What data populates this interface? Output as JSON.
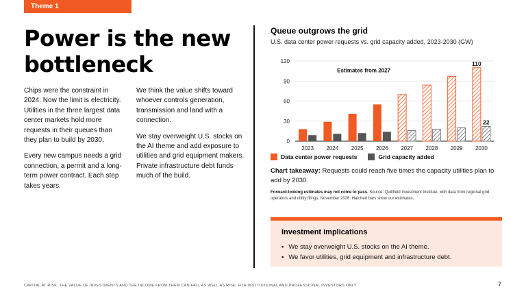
{
  "theme_tab": "Theme 1",
  "headline": "Power is the new bottleneck",
  "left_col": {
    "p1": "Chips were the constraint in 2024. Now the limit is electricity. Utilities in the three largest data center markets hold more requests in their queues than they plan to build by 2030.",
    "p2": "Every new campus needs a grid connection, a permit and a long-term power contract. Each step takes years."
  },
  "right_col": {
    "p1": "We think the value shifts toward whoever controls generation, transmission and land with a connection.",
    "p2": "We stay overweight U.S. stocks on the AI theme and add exposure to utilities and grid equipment makers. Private infrastructure debt funds much of the build."
  },
  "chart": {
    "title": "Queue outgrows the grid",
    "subtitle": "U.S. data center power requests vs. grid capacity added, 2023-2030 (GW)"
  },
  "chart_data": {
    "type": "bar",
    "title": "Queue outgrows the grid",
    "subtitle": "U.S. data center power requests vs. grid capacity added, 2023-2030 (GW)",
    "categories": [
      "2023",
      "2024",
      "2025",
      "2026",
      "2027",
      "2028",
      "2029",
      "2030"
    ],
    "series": [
      {
        "name": "Data center power requests",
        "color": "#f15a22",
        "values": [
          18,
          29,
          41,
          55,
          70,
          84,
          97,
          110
        ]
      },
      {
        "name": "Grid capacity added",
        "color": "#555555",
        "values": [
          9,
          11,
          12,
          14,
          16,
          18,
          20,
          22
        ]
      }
    ],
    "ylim": [
      0,
      120
    ],
    "yticks": [
      0,
      30,
      60,
      90,
      120
    ],
    "forecast_start_index": 4,
    "forecast_note": "Estimates from 2027",
    "data_labels": [
      {
        "series": 0,
        "index": 7,
        "text": "110"
      },
      {
        "series": 1,
        "index": 7,
        "text": "22"
      }
    ],
    "grid": true,
    "legend": "bottom-left"
  },
  "legend": {
    "requests": "Data center power requests",
    "capacity": "Grid capacity added"
  },
  "takeaway": {
    "label": "Chart takeaway:",
    "text": "Requests could reach five times the capacity utilities plan to add by 2030."
  },
  "source": {
    "bold": "Forward-looking estimates may not come to pass.",
    "text": "Source: Quillfield Investment Institute, with data from regional grid operators and utility filings, November 2026. Hatched bars show our estimates."
  },
  "implications": {
    "title": "Investment implications",
    "items": [
      "We stay overweight U.S. stocks on the AI theme.",
      "We favor utilities, grid equipment and infrastructure debt."
    ]
  },
  "footer": "CAPITAL AT RISK. THE VALUE OF INVESTMENTS AND THE INCOME FROM THEM CAN FALL AS WELL AS RISE. FOR INSTITUTIONAL AND PROFESSIONAL INVESTORS ONLY.",
  "page_number": "7"
}
